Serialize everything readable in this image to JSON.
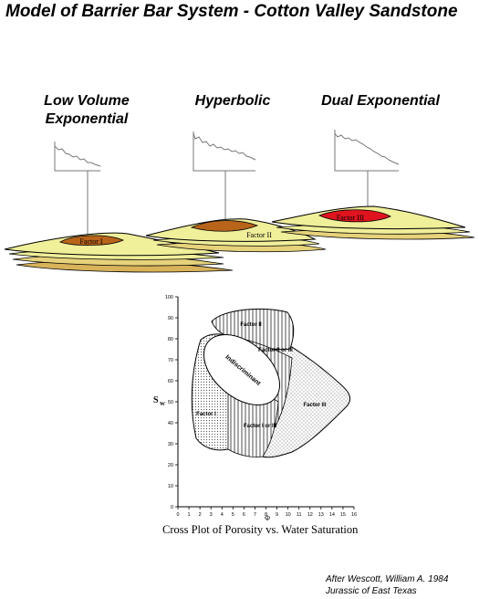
{
  "title": "Model of Barrier Bar System - Cotton Valley Sandstone",
  "models": [
    {
      "label_line1": "Low Volume",
      "label_line2": "Exponential",
      "factor": "Factor I",
      "factor_color": "#b8641a"
    },
    {
      "label_line1": "Hyperbolic",
      "label_line2": "",
      "factor": "Factor II",
      "factor_color": "#b8641a"
    },
    {
      "label_line1": "Dual Exponential",
      "label_line2": "",
      "factor": "Factor III",
      "factor_color": "#e0141e"
    }
  ],
  "crossplot": {
    "y_ticks": [
      "100",
      "90",
      "80",
      "70",
      "60",
      "50",
      "40",
      "30",
      "20",
      "10",
      "0"
    ],
    "x_ticks": [
      "0",
      "1",
      "2",
      "3",
      "4",
      "5",
      "6",
      "7",
      "8",
      "9",
      "10",
      "11",
      "12",
      "13",
      "14",
      "15",
      "16"
    ],
    "y_label": "S",
    "y_label_sub": "W",
    "x_label": "Φ",
    "regions": {
      "factor2": "Factor II",
      "factor2or3": "Factor II or III",
      "indiscriminant": "Indiscriminant",
      "factor1": "Factor I",
      "factor1or3": "Factor I or III",
      "factor3": "Factor III"
    },
    "caption": "Cross Plot of Porosity vs. Water Saturation"
  },
  "credit": {
    "line1": "After Wescott, William A. 1984",
    "line2": "Jurassic of East Texas"
  },
  "colors": {
    "sand_light": "#f0ef9a",
    "sand_mid": "#e6d27a",
    "sand_dark": "#d9b35a"
  }
}
